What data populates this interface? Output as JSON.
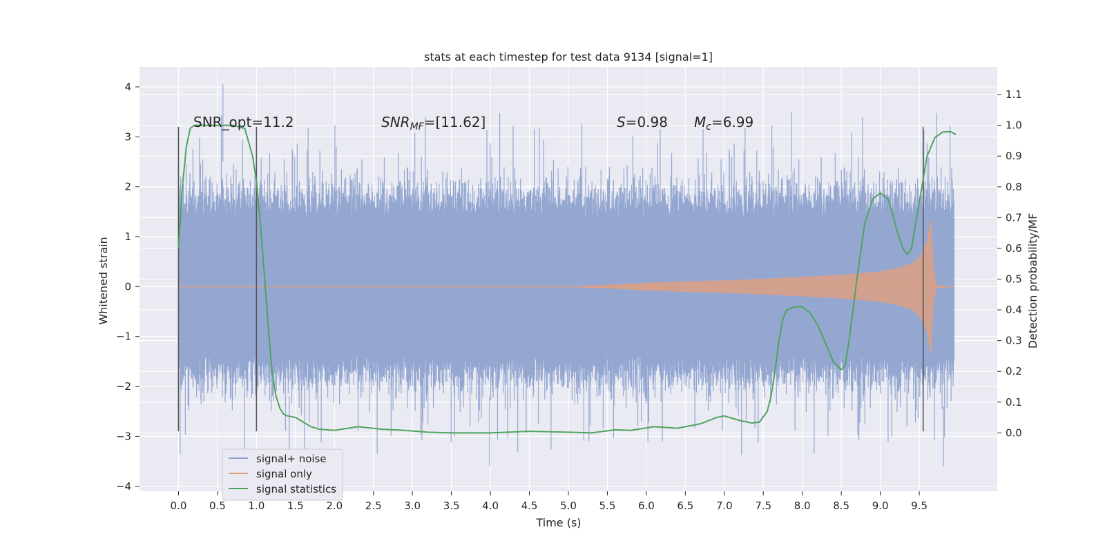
{
  "chart_data": {
    "type": "line",
    "title": "stats at each timestep for test data 9134 [signal=1]",
    "xlabel": "Time (s)",
    "ylabel_left": "Whitened strain",
    "ylabel_right": "Detection probability/MF",
    "xlim": [
      -0.5,
      10.5
    ],
    "ylim_left": [
      -4.1,
      4.4
    ],
    "ylim_right": [
      -0.19,
      1.19
    ],
    "x_ticks": [
      0.0,
      0.5,
      1.0,
      1.5,
      2.0,
      2.5,
      3.0,
      3.5,
      4.0,
      4.5,
      5.0,
      5.5,
      6.0,
      6.5,
      7.0,
      7.5,
      8.0,
      8.5,
      9.0,
      9.5
    ],
    "x_tick_labels": [
      "0.0",
      "0.5",
      "1.0",
      "1.5",
      "2.0",
      "2.5",
      "3.0",
      "3.5",
      "4.0",
      "4.5",
      "5.0",
      "5.5",
      "6.0",
      "6.5",
      "7.0",
      "7.5",
      "8.0",
      "8.5",
      "9.0",
      "9.5"
    ],
    "y_left_ticks": [
      4,
      3,
      2,
      1,
      0,
      -1,
      -2,
      -3,
      -4
    ],
    "y_left_tick_labels": [
      "4",
      "3",
      "2",
      "1",
      "0",
      "−1",
      "−2",
      "−3",
      "−4"
    ],
    "y_right_ticks": [
      1.1,
      1.0,
      0.9,
      0.8,
      0.7,
      0.6,
      0.5,
      0.4,
      0.3,
      0.2,
      0.1,
      0.0
    ],
    "y_right_tick_labels": [
      "1.1",
      "1.0",
      "0.9",
      "0.8",
      "0.7",
      "0.6",
      "0.5",
      "0.4",
      "0.3",
      "0.2",
      "0.1",
      "0.0"
    ],
    "grid": true,
    "legend_position": "lower-left",
    "annotations": {
      "snr_opt": "SNR_opt=11.2",
      "snr_mf_main": "SNR",
      "snr_mf_sub": "MF",
      "snr_mf_rest": "=[11.62]",
      "s_var": "S",
      "s_rest": "=0.98",
      "mc_var": "M",
      "mc_sub": "c",
      "mc_rest": "=6.99"
    },
    "vertical_markers": {
      "x": [
        0.0,
        1.0,
        9.55
      ],
      "y_range": [
        -2.9,
        3.2
      ],
      "color": "#555555"
    },
    "noise_band": {
      "x_range": [
        0.0,
        9.95
      ],
      "typical_amplitude": 1.35,
      "peak_amplitude": 3.5,
      "min_extreme": -3.6,
      "max_extreme": 4.05
    },
    "series": [
      {
        "name": "signal+ noise",
        "color": "#8fa3cf",
        "axis": "left",
        "style": "dense-noise"
      },
      {
        "name": "signal only",
        "color": "#dd9f84",
        "axis": "left",
        "style": "chirp",
        "envelope": {
          "x": [
            0.0,
            5.0,
            5.5,
            6.0,
            6.5,
            7.0,
            7.5,
            8.0,
            8.5,
            9.0,
            9.2,
            9.4,
            9.5,
            9.6,
            9.65,
            9.68,
            9.72,
            9.95
          ],
          "amp": [
            0.0,
            0.0,
            0.03,
            0.07,
            0.1,
            0.12,
            0.15,
            0.19,
            0.23,
            0.3,
            0.36,
            0.45,
            0.58,
            0.9,
            1.35,
            0.4,
            0.02,
            0.0
          ]
        }
      },
      {
        "name": "signal statistics",
        "color": "#4ea35e",
        "axis": "right",
        "style": "line",
        "x": [
          0.0,
          0.05,
          0.1,
          0.15,
          0.2,
          0.3,
          0.5,
          0.7,
          0.85,
          0.95,
          1.0,
          1.05,
          1.1,
          1.15,
          1.2,
          1.25,
          1.3,
          1.35,
          1.4,
          1.5,
          1.6,
          1.7,
          1.8,
          1.9,
          2.0,
          2.3,
          2.6,
          2.9,
          3.2,
          3.5,
          4.0,
          4.5,
          5.0,
          5.3,
          5.6,
          5.8,
          6.1,
          6.4,
          6.7,
          6.9,
          7.0,
          7.2,
          7.35,
          7.45,
          7.55,
          7.6,
          7.65,
          7.7,
          7.75,
          7.8,
          7.9,
          8.0,
          8.1,
          8.2,
          8.3,
          8.4,
          8.5,
          8.55,
          8.6,
          8.7,
          8.8,
          8.9,
          9.0,
          9.1,
          9.15,
          9.2,
          9.25,
          9.3,
          9.35,
          9.4,
          9.5,
          9.6,
          9.7,
          9.8,
          9.9,
          9.97
        ],
        "y": [
          0.6,
          0.8,
          0.93,
          0.99,
          1.0,
          1.0,
          1.0,
          1.0,
          0.99,
          0.9,
          0.82,
          0.68,
          0.52,
          0.35,
          0.2,
          0.12,
          0.08,
          0.06,
          0.055,
          0.05,
          0.035,
          0.02,
          0.012,
          0.01,
          0.008,
          0.02,
          0.012,
          0.008,
          0.002,
          0.0,
          0.0,
          0.005,
          0.002,
          0.0,
          0.01,
          0.008,
          0.02,
          0.015,
          0.03,
          0.05,
          0.055,
          0.04,
          0.032,
          0.035,
          0.07,
          0.12,
          0.2,
          0.3,
          0.37,
          0.4,
          0.41,
          0.41,
          0.39,
          0.35,
          0.29,
          0.23,
          0.205,
          0.22,
          0.3,
          0.5,
          0.68,
          0.76,
          0.78,
          0.76,
          0.72,
          0.67,
          0.63,
          0.595,
          0.58,
          0.6,
          0.75,
          0.9,
          0.96,
          0.978,
          0.98,
          0.97
        ]
      }
    ]
  }
}
